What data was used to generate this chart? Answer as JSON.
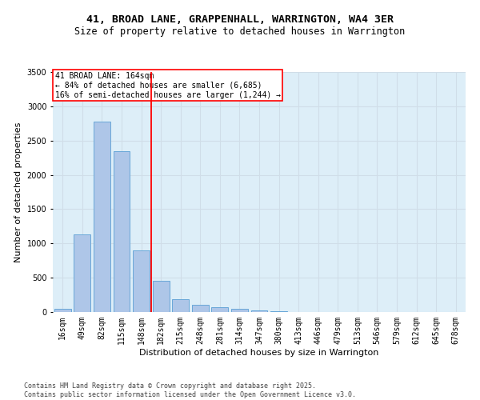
{
  "title1": "41, BROAD LANE, GRAPPENHALL, WARRINGTON, WA4 3ER",
  "title2": "Size of property relative to detached houses in Warrington",
  "xlabel": "Distribution of detached houses by size in Warrington",
  "ylabel": "Number of detached properties",
  "categories": [
    "16sqm",
    "49sqm",
    "82sqm",
    "115sqm",
    "148sqm",
    "182sqm",
    "215sqm",
    "248sqm",
    "281sqm",
    "314sqm",
    "347sqm",
    "380sqm",
    "413sqm",
    "446sqm",
    "479sqm",
    "513sqm",
    "546sqm",
    "579sqm",
    "612sqm",
    "645sqm",
    "678sqm"
  ],
  "values": [
    50,
    1130,
    2780,
    2350,
    900,
    450,
    185,
    110,
    75,
    50,
    25,
    10,
    5,
    5,
    2,
    1,
    1,
    0,
    0,
    0,
    0
  ],
  "bar_color": "#aec6e8",
  "bar_edge_color": "#5a9fd4",
  "vline_color": "red",
  "vline_pos": 4.5,
  "annotation_title": "41 BROAD LANE: 164sqm",
  "annotation_line1": "← 84% of detached houses are smaller (6,685)",
  "annotation_line2": "16% of semi-detached houses are larger (1,244) →",
  "annotation_box_color": "white",
  "annotation_box_edge": "red",
  "ylim": [
    0,
    3500
  ],
  "yticks": [
    0,
    500,
    1000,
    1500,
    2000,
    2500,
    3000,
    3500
  ],
  "grid_color": "#d0dde8",
  "bg_color": "#ddeef8",
  "footer1": "Contains HM Land Registry data © Crown copyright and database right 2025.",
  "footer2": "Contains public sector information licensed under the Open Government Licence v3.0.",
  "title_fontsize": 9.5,
  "subtitle_fontsize": 8.5,
  "ylabel_fontsize": 8,
  "xlabel_fontsize": 8,
  "tick_fontsize": 7,
  "annot_fontsize": 7,
  "footer_fontsize": 6
}
